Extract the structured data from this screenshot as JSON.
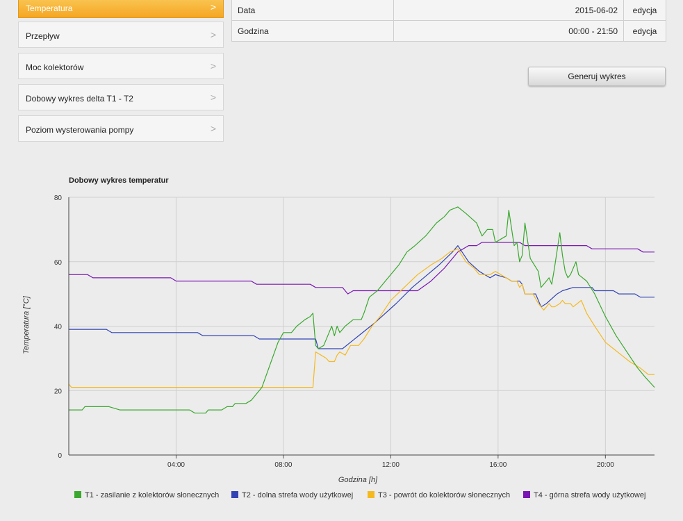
{
  "menu": {
    "items": [
      {
        "label": "Temperatura",
        "active": true
      },
      {
        "label": "Przepływ"
      },
      {
        "label": "Moc kolektorów"
      },
      {
        "label": "Dobowy wykres delta T1 - T2"
      },
      {
        "label": "Poziom wysterowania pompy"
      }
    ],
    "chevron": ">"
  },
  "params": {
    "rows": [
      {
        "label": "Data",
        "value": "2015-06-02",
        "action": "edycja"
      },
      {
        "label": "Godzina",
        "value": "00:00 - 21:50",
        "action": "edycja"
      }
    ]
  },
  "generate_button": "Generuj wykres",
  "chart_data": {
    "type": "line",
    "title": "Dobowy wykres temperatur",
    "xlabel": "Godzina [h]",
    "ylabel": "Temperatura [°C]",
    "x_tick_labels": [
      "04:00",
      "08:00",
      "12:00",
      "16:00",
      "20:00"
    ],
    "y_tick_labels": [
      "0",
      "20",
      "40",
      "60",
      "80"
    ],
    "xlim": [
      0,
      21.83
    ],
    "ylim": [
      0,
      80
    ],
    "grid": true,
    "legend_position": "bottom",
    "series": [
      {
        "name": "T1 - zasilanie z kolektorów słonecznych",
        "color": "#3aa82e",
        "points": [
          [
            0,
            14
          ],
          [
            0.5,
            14
          ],
          [
            0.6,
            15
          ],
          [
            1.5,
            15
          ],
          [
            1.9,
            14
          ],
          [
            4.5,
            14
          ],
          [
            4.7,
            13
          ],
          [
            5.1,
            13
          ],
          [
            5.2,
            14
          ],
          [
            5.7,
            14
          ],
          [
            5.9,
            15
          ],
          [
            6.1,
            15
          ],
          [
            6.2,
            16
          ],
          [
            6.6,
            16
          ],
          [
            6.8,
            17
          ],
          [
            7,
            19
          ],
          [
            7.2,
            21
          ],
          [
            7.5,
            28
          ],
          [
            7.8,
            35
          ],
          [
            8,
            38
          ],
          [
            8.3,
            38
          ],
          [
            8.5,
            40
          ],
          [
            8.8,
            42
          ],
          [
            9,
            43
          ],
          [
            9.1,
            44
          ],
          [
            9.2,
            34
          ],
          [
            9.3,
            33
          ],
          [
            9.5,
            34
          ],
          [
            9.7,
            38
          ],
          [
            9.8,
            40
          ],
          [
            9.9,
            37
          ],
          [
            10,
            40
          ],
          [
            10.1,
            38
          ],
          [
            10.3,
            40
          ],
          [
            10.6,
            42
          ],
          [
            10.9,
            42
          ],
          [
            11,
            44
          ],
          [
            11.2,
            49
          ],
          [
            11.5,
            51
          ],
          [
            11.7,
            53
          ],
          [
            12,
            56
          ],
          [
            12.3,
            59
          ],
          [
            12.6,
            63
          ],
          [
            12.9,
            65
          ],
          [
            13.3,
            68
          ],
          [
            13.7,
            72
          ],
          [
            14,
            74
          ],
          [
            14.2,
            76
          ],
          [
            14.5,
            77
          ],
          [
            14.8,
            75
          ],
          [
            15.2,
            72
          ],
          [
            15.4,
            68
          ],
          [
            15.6,
            70
          ],
          [
            15.8,
            70
          ],
          [
            15.9,
            66
          ],
          [
            16.1,
            67
          ],
          [
            16.3,
            68
          ],
          [
            16.4,
            76
          ],
          [
            16.6,
            65
          ],
          [
            16.7,
            66
          ],
          [
            16.8,
            60
          ],
          [
            16.9,
            62
          ],
          [
            17,
            72
          ],
          [
            17.2,
            61
          ],
          [
            17.5,
            57
          ],
          [
            17.6,
            52
          ],
          [
            17.8,
            54
          ],
          [
            17.9,
            55
          ],
          [
            18,
            53
          ],
          [
            18.1,
            58
          ],
          [
            18.3,
            69
          ],
          [
            18.4,
            62
          ],
          [
            18.5,
            57
          ],
          [
            18.6,
            55
          ],
          [
            18.7,
            56
          ],
          [
            18.9,
            60
          ],
          [
            19,
            56
          ],
          [
            19.3,
            54
          ],
          [
            19.6,
            50
          ],
          [
            20,
            43
          ],
          [
            20.4,
            37
          ],
          [
            20.8,
            32
          ],
          [
            21.2,
            27
          ],
          [
            21.5,
            24
          ],
          [
            21.83,
            21
          ]
        ]
      },
      {
        "name": "T2 - dolna strefa wody użytkowej",
        "color": "#3244b4",
        "points": [
          [
            0,
            39
          ],
          [
            1.4,
            39
          ],
          [
            1.6,
            38
          ],
          [
            4.8,
            38
          ],
          [
            5,
            37
          ],
          [
            6.9,
            37
          ],
          [
            7.1,
            36
          ],
          [
            9.2,
            36
          ],
          [
            9.3,
            33
          ],
          [
            10.2,
            33
          ],
          [
            10.5,
            35
          ],
          [
            10.8,
            37
          ],
          [
            11.4,
            41
          ],
          [
            12.2,
            47
          ],
          [
            12.8,
            52
          ],
          [
            13.8,
            59
          ],
          [
            14.3,
            63
          ],
          [
            14.5,
            65
          ],
          [
            14.9,
            60
          ],
          [
            15.3,
            57
          ],
          [
            15.7,
            55
          ],
          [
            15.9,
            56
          ],
          [
            16.3,
            55
          ],
          [
            16.5,
            54
          ],
          [
            16.8,
            54
          ],
          [
            16.9,
            53
          ],
          [
            17,
            50
          ],
          [
            17.4,
            50
          ],
          [
            17.6,
            46
          ],
          [
            17.8,
            47
          ],
          [
            18.2,
            50
          ],
          [
            18.4,
            51
          ],
          [
            18.8,
            52
          ],
          [
            19.5,
            52
          ],
          [
            19.6,
            51
          ],
          [
            20.3,
            51
          ],
          [
            20.5,
            50
          ],
          [
            21.1,
            50
          ],
          [
            21.3,
            49
          ],
          [
            21.83,
            49
          ]
        ]
      },
      {
        "name": "T3 - powrót do kolektorów słonecznych",
        "color": "#f5b920",
        "points": [
          [
            0,
            22
          ],
          [
            0.1,
            21
          ],
          [
            9.1,
            21
          ],
          [
            9.2,
            32
          ],
          [
            9.4,
            31
          ],
          [
            9.6,
            30
          ],
          [
            9.7,
            29
          ],
          [
            9.9,
            29
          ],
          [
            10,
            31
          ],
          [
            10.1,
            32
          ],
          [
            10.3,
            31
          ],
          [
            10.5,
            34
          ],
          [
            10.8,
            34
          ],
          [
            11,
            36
          ],
          [
            11.3,
            40
          ],
          [
            11.6,
            43
          ],
          [
            12,
            48
          ],
          [
            12.5,
            52
          ],
          [
            13,
            56
          ],
          [
            13.5,
            59
          ],
          [
            13.9,
            61
          ],
          [
            14.2,
            63
          ],
          [
            14.5,
            64
          ],
          [
            14.8,
            60
          ],
          [
            15.1,
            58
          ],
          [
            15.3,
            56
          ],
          [
            15.7,
            56
          ],
          [
            15.9,
            57
          ],
          [
            16.1,
            56
          ],
          [
            16.5,
            54
          ],
          [
            16.7,
            54
          ],
          [
            16.8,
            52
          ],
          [
            16.9,
            53
          ],
          [
            17,
            50
          ],
          [
            17.3,
            50
          ],
          [
            17.5,
            47
          ],
          [
            17.6,
            46
          ],
          [
            17.7,
            45
          ],
          [
            17.8,
            46
          ],
          [
            17.9,
            47
          ],
          [
            18,
            46
          ],
          [
            18.1,
            46
          ],
          [
            18.3,
            47
          ],
          [
            18.4,
            48
          ],
          [
            18.5,
            47
          ],
          [
            18.7,
            47
          ],
          [
            18.8,
            46
          ],
          [
            19.1,
            48
          ],
          [
            19.3,
            44
          ],
          [
            19.6,
            40
          ],
          [
            20,
            35
          ],
          [
            20.3,
            33
          ],
          [
            20.6,
            31
          ],
          [
            20.9,
            29
          ],
          [
            21.1,
            28
          ],
          [
            21.3,
            27
          ],
          [
            21.6,
            25
          ],
          [
            21.83,
            25
          ]
        ]
      },
      {
        "name": "T4 - górna strefa wody użytkowej",
        "color": "#7a16b4",
        "points": [
          [
            0,
            56
          ],
          [
            0.7,
            56
          ],
          [
            0.9,
            55
          ],
          [
            3.8,
            55
          ],
          [
            4,
            54
          ],
          [
            6.8,
            54
          ],
          [
            7,
            53
          ],
          [
            9,
            53
          ],
          [
            9.2,
            52
          ],
          [
            10.2,
            52
          ],
          [
            10.4,
            50
          ],
          [
            10.6,
            51
          ],
          [
            12.8,
            51
          ],
          [
            13,
            51
          ],
          [
            13.5,
            54
          ],
          [
            14,
            58
          ],
          [
            14.5,
            63
          ],
          [
            14.9,
            65
          ],
          [
            15.2,
            65
          ],
          [
            15.4,
            66
          ],
          [
            16.8,
            66
          ],
          [
            17,
            65
          ],
          [
            19.3,
            65
          ],
          [
            19.5,
            64
          ],
          [
            21.2,
            64
          ],
          [
            21.4,
            63
          ],
          [
            21.83,
            63
          ]
        ]
      }
    ]
  }
}
